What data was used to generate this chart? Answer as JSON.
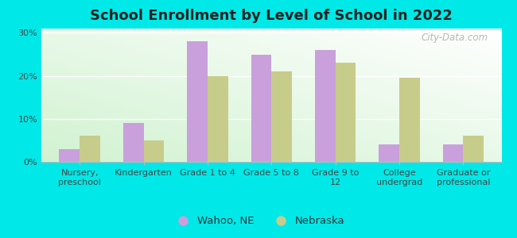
{
  "title": "School Enrollment by Level of School in 2022",
  "categories": [
    "Nursery,\npreschool",
    "Kindergarten",
    "Grade 1 to 4",
    "Grade 5 to 8",
    "Grade 9 to\n12",
    "College\nundergrad",
    "Graduate or\nprofessional"
  ],
  "wahoo_values": [
    3,
    9,
    28,
    25,
    26,
    4,
    4
  ],
  "nebraska_values": [
    6,
    5,
    20,
    21,
    23,
    19.5,
    6
  ],
  "wahoo_color": "#c9a0dc",
  "nebraska_color": "#c8cc8a",
  "background_color": "#00e8e8",
  "plot_bg_color": "#e8f5e8",
  "yticks": [
    0,
    10,
    20,
    30
  ],
  "ylim": [
    0,
    31
  ],
  "legend_labels": [
    "Wahoo, NE",
    "Nebraska"
  ],
  "watermark": "City-Data.com",
  "title_fontsize": 13,
  "tick_fontsize": 8,
  "legend_fontsize": 9.5,
  "bar_width": 0.32
}
